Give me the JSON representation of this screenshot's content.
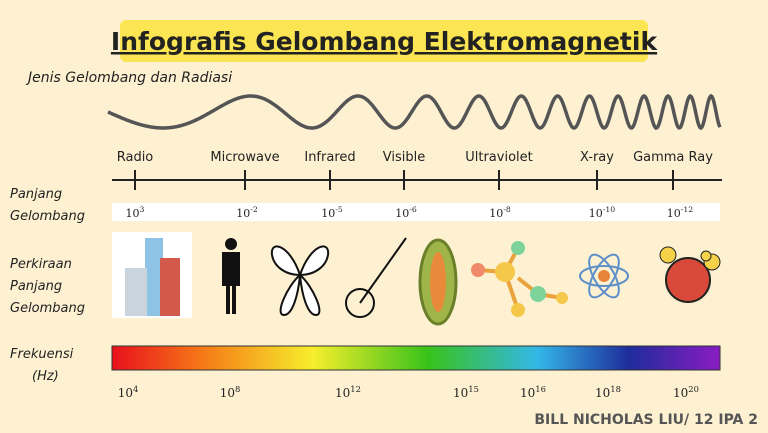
{
  "title": "Infografis Gelombang Elektromagnetik",
  "subtitle": "Jenis Gelombang dan Radiasi",
  "row_labels": {
    "wavelength": [
      "Panjang",
      "Gelombang"
    ],
    "approx": [
      "Perkiraan",
      "Panjang",
      "Gelombang"
    ],
    "frequency": [
      "Frekuensi",
      "(Hz)"
    ]
  },
  "waves": [
    "Radio",
    "Microwave",
    "Infrared",
    "Visible",
    "Ultraviolet",
    "X-ray",
    "Gamma Ray"
  ],
  "wavelengths": [
    {
      "base": "10",
      "exp": "3"
    },
    {
      "base": "10",
      "exp": "-2"
    },
    {
      "base": "10",
      "exp": "-5"
    },
    {
      "base": "10",
      "exp": "-6"
    },
    {
      "base": "10",
      "exp": "-8"
    },
    {
      "base": "10",
      "exp": "-10"
    },
    {
      "base": "10",
      "exp": "-12"
    }
  ],
  "frequencies": [
    {
      "base": "10",
      "exp": "4"
    },
    {
      "base": "10",
      "exp": "8"
    },
    {
      "base": "10",
      "exp": "12"
    },
    {
      "base": "10",
      "exp": "15"
    },
    {
      "base": "10",
      "exp": "16"
    },
    {
      "base": "10",
      "exp": "18"
    },
    {
      "base": "10",
      "exp": "20"
    }
  ],
  "author": "BILL NICHOLAS LIU/ 12 IPA 2"
}
